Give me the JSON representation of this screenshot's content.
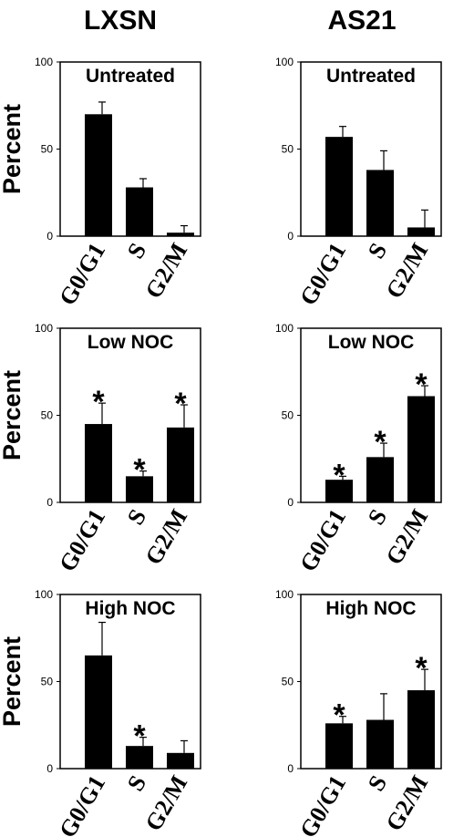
{
  "column_titles": [
    "LXSN",
    "AS21"
  ],
  "y_axis_label": "Percent",
  "chart_data": [
    {
      "type": "bar",
      "title": "Untreated",
      "column": "LXSN",
      "ylabel": "Percent",
      "ylim": [
        0,
        100
      ],
      "yticks": [
        0,
        50,
        100
      ],
      "categories": [
        "G0/G1",
        "S",
        "G2/M"
      ],
      "values": [
        70,
        28,
        2
      ],
      "errors": [
        7,
        5,
        4
      ],
      "significant": [
        false,
        false,
        false
      ]
    },
    {
      "type": "bar",
      "title": "Untreated",
      "column": "AS21",
      "ylabel": "",
      "ylim": [
        0,
        100
      ],
      "yticks": [
        0,
        50,
        100
      ],
      "categories": [
        "G0/G1",
        "S",
        "G2/M"
      ],
      "values": [
        57,
        38,
        5
      ],
      "errors": [
        6,
        11,
        10
      ],
      "significant": [
        false,
        false,
        false
      ]
    },
    {
      "type": "bar",
      "title": "Low NOC",
      "column": "LXSN",
      "ylabel": "Percent",
      "ylim": [
        0,
        100
      ],
      "yticks": [
        0,
        50,
        100
      ],
      "categories": [
        "G0/G1",
        "S",
        "G2/M"
      ],
      "values": [
        45,
        15,
        43
      ],
      "errors": [
        12,
        3,
        13
      ],
      "significant": [
        true,
        true,
        true
      ]
    },
    {
      "type": "bar",
      "title": "Low NOC",
      "column": "AS21",
      "ylabel": "",
      "ylim": [
        0,
        100
      ],
      "yticks": [
        0,
        50,
        100
      ],
      "categories": [
        "G0/G1",
        "S",
        "G2/M"
      ],
      "values": [
        13,
        26,
        61
      ],
      "errors": [
        2,
        8,
        6
      ],
      "significant": [
        true,
        true,
        true
      ]
    },
    {
      "type": "bar",
      "title": "High NOC",
      "column": "LXSN",
      "ylabel": "Percent",
      "ylim": [
        0,
        100
      ],
      "yticks": [
        0,
        50,
        100
      ],
      "categories": [
        "G0/G1",
        "S",
        "G2/M"
      ],
      "values": [
        65,
        13,
        9
      ],
      "errors": [
        19,
        5,
        7
      ],
      "significant": [
        false,
        true,
        false
      ]
    },
    {
      "type": "bar",
      "title": "High NOC",
      "column": "AS21",
      "ylabel": "",
      "ylim": [
        0,
        100
      ],
      "yticks": [
        0,
        50,
        100
      ],
      "categories": [
        "G0/G1",
        "S",
        "G2/M"
      ],
      "values": [
        26,
        28,
        45
      ],
      "errors": [
        4,
        15,
        12
      ],
      "significant": [
        true,
        false,
        true
      ]
    }
  ]
}
